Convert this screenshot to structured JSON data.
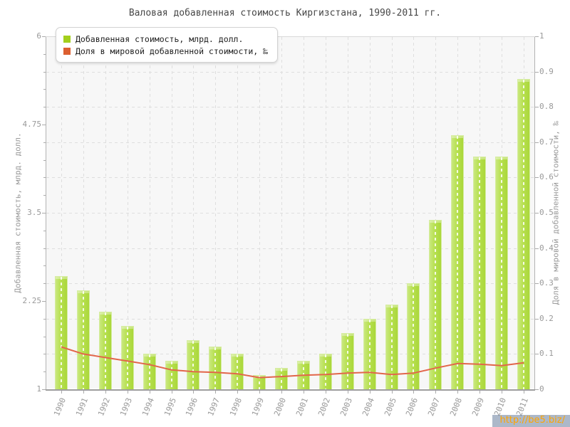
{
  "title": "Валовая добавленная стоимость Киргизстана, 1990-2011 гг.",
  "watermark": "http://be5.biz/",
  "legend": [
    {
      "label": "Добавленная стоимость, млрд. долл.",
      "color": "#a3cf1c"
    },
    {
      "label": "Доля в мировой добавленной стоимости, ‰",
      "color": "#dc5f30"
    }
  ],
  "left_axis": {
    "title": "Добавленная стоимость, млрд. долл.",
    "tick_labels": [
      "6",
      "4.75",
      "3.5",
      "2.25",
      "1"
    ],
    "tick_values": [
      6,
      4.75,
      3.5,
      2.25,
      1
    ],
    "min": 1,
    "max": 6
  },
  "right_axis": {
    "title": "Доля в мировой добавленной стоимости, ‰",
    "tick_labels": [
      "1",
      "0.9",
      "0.8",
      "0.7",
      "0.6",
      "0.5",
      "0.4",
      "0.3",
      "0.2",
      "0.1",
      "0"
    ],
    "tick_values": [
      1,
      0.9,
      0.8,
      0.7,
      0.6,
      0.5,
      0.4,
      0.3,
      0.2,
      0.1,
      0
    ],
    "min": 0,
    "max": 1
  },
  "chart_data": {
    "type": "bar",
    "title": "Валовая добавленная стоимость Киргизстана, 1990-2011 гг.",
    "categories": [
      "1990",
      "1991",
      "1992",
      "1993",
      "1994",
      "1995",
      "1996",
      "1997",
      "1998",
      "1999",
      "2000",
      "2001",
      "2002",
      "2003",
      "2004",
      "2005",
      "2006",
      "2007",
      "2008",
      "2009",
      "2010",
      "2011"
    ],
    "series": [
      {
        "name": "Добавленная стоимость, млрд. долл.",
        "type": "bar",
        "axis": "left",
        "color": "#b7e050",
        "values": [
          2.6,
          2.4,
          2.1,
          1.9,
          1.5,
          1.4,
          1.7,
          1.6,
          1.5,
          1.2,
          1.3,
          1.4,
          1.5,
          1.8,
          2.0,
          2.2,
          2.5,
          3.4,
          4.6,
          4.3,
          4.3,
          5.4
        ]
      },
      {
        "name": "Доля в мировой добавленной стоимости, ‰",
        "type": "line",
        "axis": "right",
        "color": "#e2664a",
        "values": [
          0.12,
          0.1,
          0.09,
          0.08,
          0.07,
          0.055,
          0.05,
          0.048,
          0.044,
          0.033,
          0.036,
          0.04,
          0.042,
          0.046,
          0.048,
          0.042,
          0.046,
          0.06,
          0.073,
          0.071,
          0.067,
          0.075
        ]
      }
    ],
    "left_ylim": [
      1,
      6
    ],
    "right_ylim": [
      0,
      1
    ],
    "grid": true,
    "legend_position": "top-left"
  }
}
